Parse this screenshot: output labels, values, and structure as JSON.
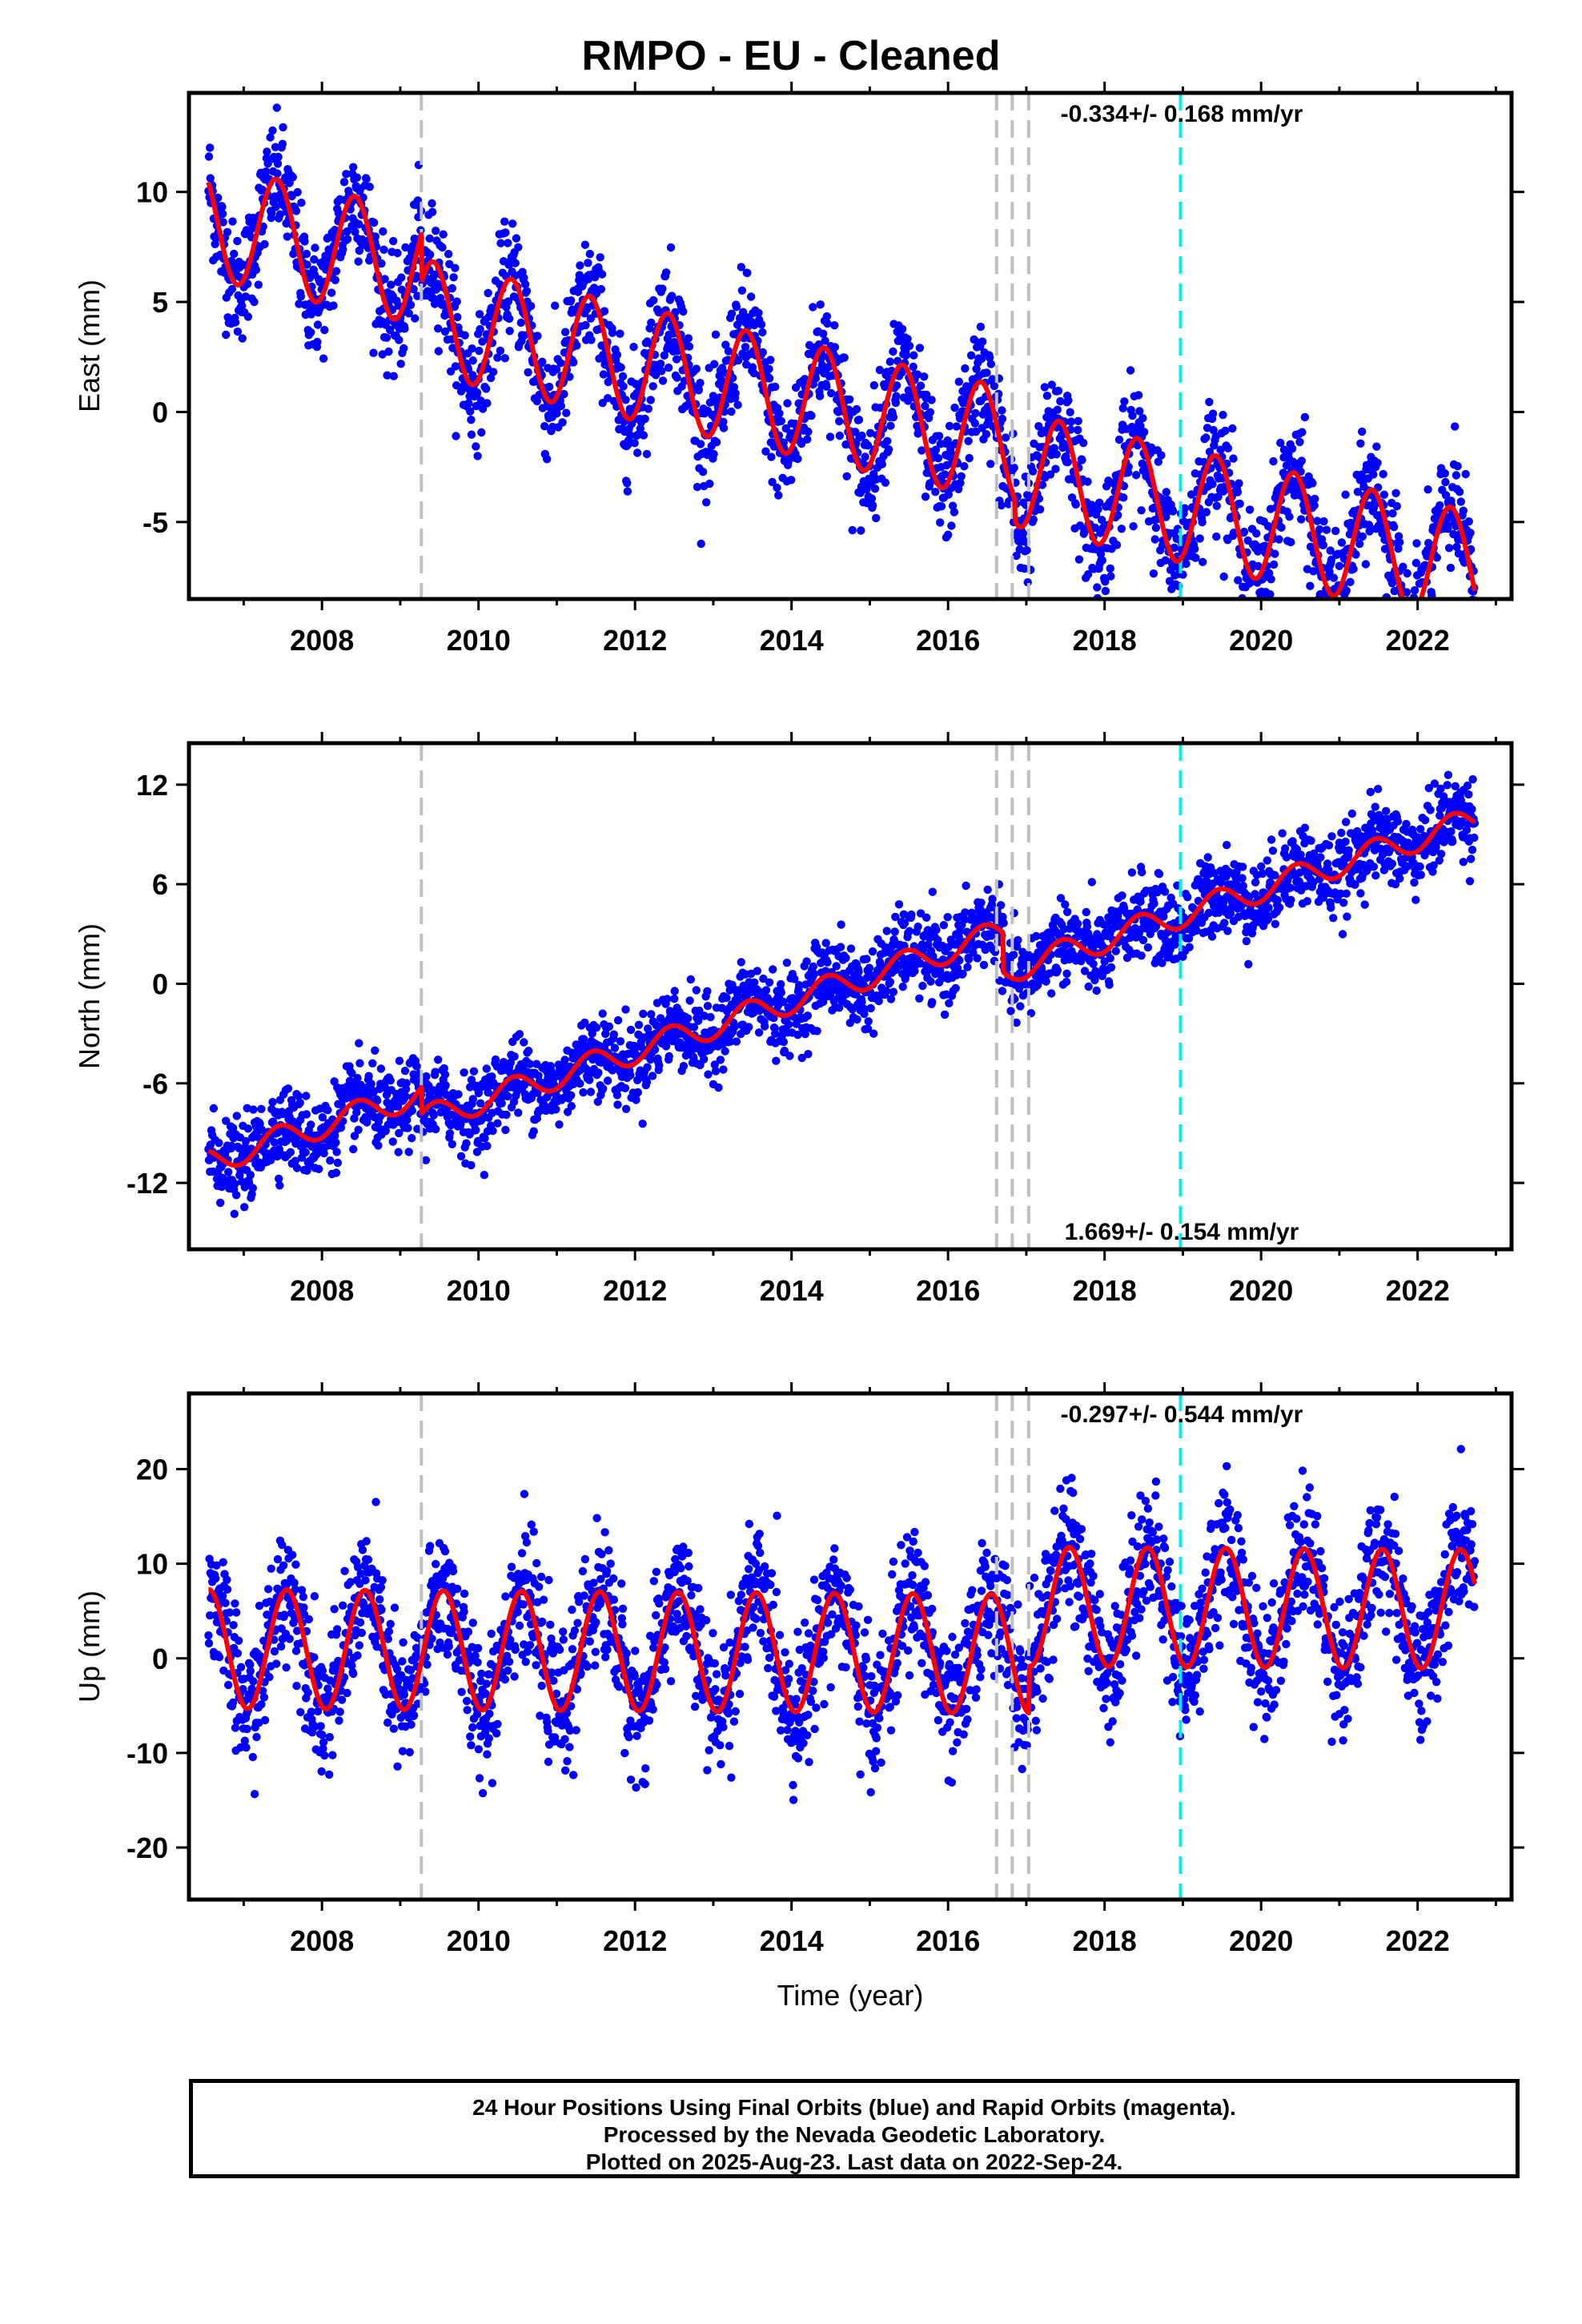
{
  "title": "RMPO  - EU - Cleaned",
  "colors": {
    "points": "#0000ff",
    "model": "#ff0000",
    "antenna_change": "#bfbfbf",
    "other_event": "#00eeee"
  },
  "footer": {
    "line1": "24 Hour Positions Using Final Orbits (blue) and Rapid Orbits (magenta).",
    "line2": "Processed by the Nevada Geodetic Laboratory.",
    "line3": "Plotted on 2025-Aug-23. Last data on 2022-Sep-24."
  },
  "chart_data": [
    {
      "type": "scatter",
      "component": "east",
      "ylabel": "East (mm)",
      "xlabel": "",
      "xlim": [
        2006.3,
        2023.2
      ],
      "ylim": [
        -8.5,
        14.5
      ],
      "xticks": [
        2008,
        2010,
        2012,
        2014,
        2016,
        2018,
        2020,
        2022
      ],
      "yticks": [
        -5,
        0,
        5,
        10
      ],
      "rate_text": "-0.334+/- 0.168 mm/yr",
      "rate_position": "top-right",
      "offset": 8.7,
      "trend": -0.78,
      "amplitude": 2.6,
      "peak_phase": 0.42,
      "noise": 1.3,
      "discontinuities": [
        {
          "year": 2009.27,
          "shift": -2.2
        },
        {
          "year": 2016.85,
          "shift": -1.0
        }
      ],
      "vertical_lines": [
        {
          "x": 2009.27,
          "kind": "antenna_change"
        },
        {
          "x": 2016.62,
          "kind": "antenna_change"
        },
        {
          "x": 2016.82,
          "kind": "antenna_change"
        },
        {
          "x": 2017.03,
          "kind": "antenna_change"
        },
        {
          "x": 2018.97,
          "kind": "other_event"
        }
      ]
    },
    {
      "type": "scatter",
      "component": "north",
      "ylabel": "North (mm)",
      "xlabel": "",
      "xlim": [
        2006.3,
        2023.2
      ],
      "ylim": [
        -16,
        14.5
      ],
      "xticks": [
        2008,
        2010,
        2012,
        2014,
        2016,
        2018,
        2020,
        2022
      ],
      "yticks": [
        -12,
        -6,
        0,
        6,
        12
      ],
      "rate_text": "1.669+/- 0.154 mm/yr",
      "rate_position": "bottom-right",
      "offset": -10.8,
      "trend": 1.52,
      "amplitude": 0.8,
      "peak_phase": 0.45,
      "noise": 1.2,
      "discontinuities": [
        {
          "year": 2009.27,
          "shift": -1.6
        },
        {
          "year": 2016.7,
          "shift": -2.4
        }
      ],
      "vertical_lines": [
        {
          "x": 2009.27,
          "kind": "antenna_change"
        },
        {
          "x": 2016.62,
          "kind": "antenna_change"
        },
        {
          "x": 2016.82,
          "kind": "antenna_change"
        },
        {
          "x": 2017.03,
          "kind": "antenna_change"
        },
        {
          "x": 2018.97,
          "kind": "other_event"
        }
      ]
    },
    {
      "type": "scatter",
      "component": "up",
      "ylabel": "Up (mm)",
      "xlabel": "Time (year)",
      "xlim": [
        2006.3,
        2023.2
      ],
      "ylim": [
        -25.5,
        28
      ],
      "xticks": [
        2008,
        2010,
        2012,
        2014,
        2016,
        2018,
        2020,
        2022
      ],
      "yticks": [
        -20,
        -10,
        0,
        10,
        20
      ],
      "rate_text": "-0.297+/- 0.544 mm/yr",
      "rate_position": "top-right",
      "offset": 1.0,
      "trend": -0.05,
      "amplitude": 6.3,
      "peak_phase": 0.55,
      "noise": 3.5,
      "discontinuities": [
        {
          "year": 2017.03,
          "shift": 5.0
        }
      ],
      "vertical_lines": [
        {
          "x": 2009.27,
          "kind": "antenna_change"
        },
        {
          "x": 2016.62,
          "kind": "antenna_change"
        },
        {
          "x": 2016.82,
          "kind": "antenna_change"
        },
        {
          "x": 2017.03,
          "kind": "antenna_change"
        },
        {
          "x": 2018.97,
          "kind": "other_event"
        }
      ]
    }
  ]
}
